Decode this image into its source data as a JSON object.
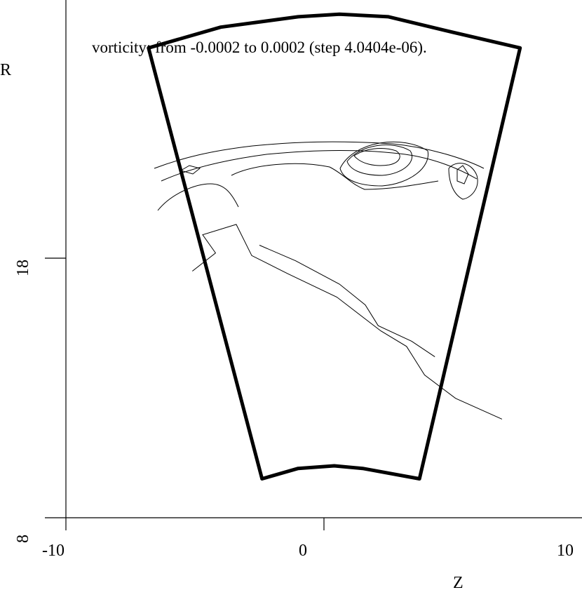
{
  "chart_data": {
    "type": "contour",
    "title": "vorticity: from -0.0002 to 0.0002 (step 4.0404e-06).",
    "xlabel": "Z",
    "ylabel": "R",
    "xlim": [
      -10,
      10
    ],
    "ylim": [
      8,
      18
    ],
    "xticks": [
      "-10",
      "0",
      "10"
    ],
    "yticks": [
      "8",
      "18"
    ],
    "grid": false,
    "contour_levels": {
      "min": -0.0002,
      "max": 0.0002,
      "step": 4.0404e-06
    },
    "domain_boundary": [
      {
        "z": -6.8,
        "r": 26.1
      },
      {
        "z": -4.0,
        "r": 26.9
      },
      {
        "z": -1.0,
        "r": 27.3
      },
      {
        "z": 0.6,
        "r": 27.4
      },
      {
        "z": 2.5,
        "r": 27.3
      },
      {
        "z": 5.0,
        "r": 26.7
      },
      {
        "z": 7.6,
        "r": 26.1
      },
      {
        "z": 3.7,
        "r": 9.5
      },
      {
        "z": 1.5,
        "r": 9.9
      },
      {
        "z": 0.4,
        "r": 10.0
      },
      {
        "z": -1.0,
        "r": 9.9
      },
      {
        "z": -2.4,
        "r": 9.5
      }
    ],
    "contours": [
      [
        {
          "z": -5.1,
          "r": 17.5
        },
        {
          "z": -4.2,
          "r": 18.2
        },
        {
          "z": -4.7,
          "r": 18.9
        },
        {
          "z": -3.4,
          "r": 19.3
        },
        {
          "z": -2.8,
          "r": 18.1
        },
        {
          "z": -1.4,
          "r": 17.4
        },
        {
          "z": 0.5,
          "r": 16.5
        },
        {
          "z": 2.2,
          "r": 15.2
        },
        {
          "z": 3.2,
          "r": 14.6
        },
        {
          "z": 3.9,
          "r": 13.5
        },
        {
          "z": 5.1,
          "r": 12.6
        },
        {
          "z": 6.9,
          "r": 11.8
        }
      ],
      [
        {
          "z": -2.5,
          "r": 18.5
        },
        {
          "z": -1.1,
          "r": 17.9
        },
        {
          "z": 0.6,
          "r": 17.0
        },
        {
          "z": 1.6,
          "r": 16.2
        },
        {
          "z": 2.1,
          "r": 15.4
        },
        {
          "z": 3.4,
          "r": 14.8
        },
        {
          "z": 4.3,
          "r": 14.2
        }
      ]
    ]
  }
}
